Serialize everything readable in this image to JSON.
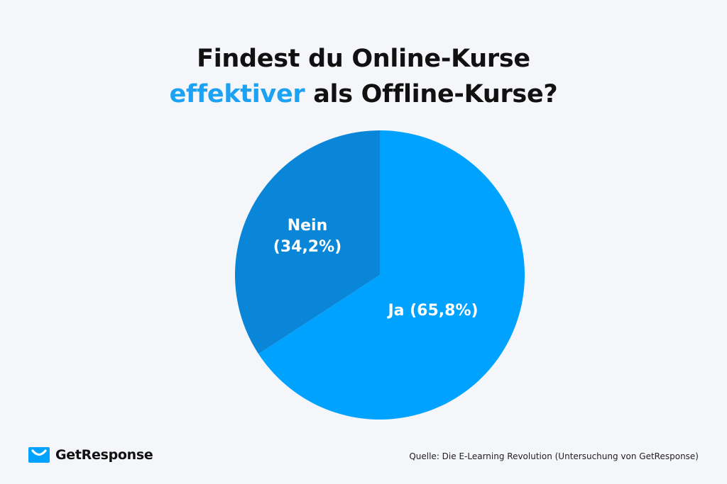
{
  "title": {
    "line1": "Findest du Online-Kurse",
    "accent": "effektiver",
    "line2_rest": " als Offline-Kurse?"
  },
  "colors": {
    "accent": "#1da1f2",
    "slice_ja": "#00a2ff",
    "slice_nein": "#0a86d8",
    "background": "#f5f6fa"
  },
  "chart_data": {
    "type": "pie",
    "slices": [
      {
        "label": "Ja (65,8%)",
        "value": 65.8,
        "color": "#00a2ff"
      },
      {
        "label": "Nein (34,2%)",
        "label_lines": [
          "Nein",
          "(34,2%)"
        ],
        "value": 34.2,
        "color": "#0a86d8"
      }
    ]
  },
  "logo": {
    "text": "GetResponse",
    "icon": "envelope-icon"
  },
  "source": "Quelle: Die E-Learning Revolution (Untersuchung von GetResponse)"
}
